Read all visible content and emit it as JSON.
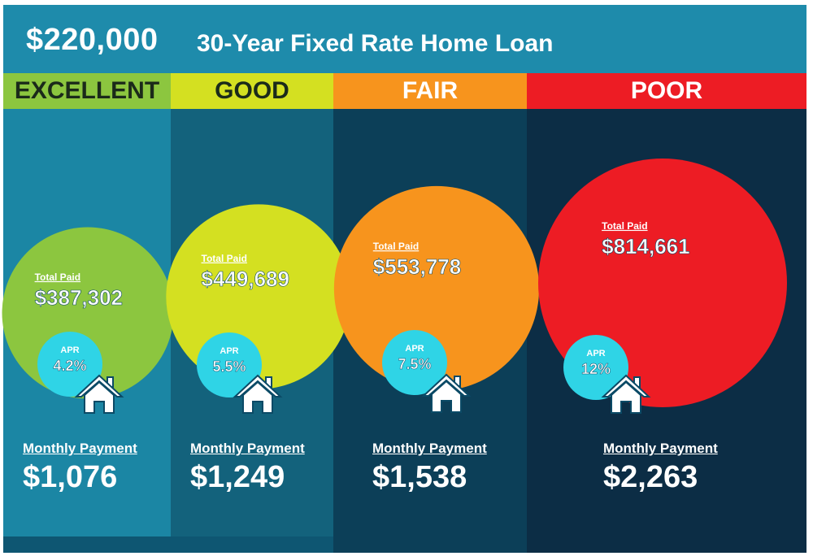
{
  "header": {
    "amount": "$220,000",
    "title": "30-Year Fixed Rate Home Loan"
  },
  "colors": {
    "title_bar": "#1e8bab",
    "excellent": "#8cc63f",
    "good": "#d4e021",
    "fair": "#f7941d",
    "poor": "#ed1c24",
    "apr_circle": "#2fd4e6",
    "col_excellent_bg": "#1b86a4",
    "col_good_bg": "#13627c",
    "col_fair_bg": "#0c3f58",
    "col_poor_bg": "#0c2d45"
  },
  "labels": {
    "total_paid": "Total Paid",
    "apr": "APR",
    "monthly_payment": "Monthly Payment"
  },
  "chart_data": {
    "type": "bubble",
    "title": "$220,000 30-Year Fixed Rate Home Loan",
    "categories": [
      "EXCELLENT",
      "GOOD",
      "FAIR",
      "POOR"
    ],
    "series": [
      {
        "name": "Total Paid",
        "values": [
          387302,
          449689,
          553778,
          814661
        ],
        "labels": [
          "$387,302",
          "$449,689",
          "$553,778",
          "$814,661"
        ]
      },
      {
        "name": "APR",
        "values": [
          4.2,
          5.5,
          7.5,
          12
        ],
        "labels": [
          "4.2%",
          "5.5%",
          "7.5%",
          "12%"
        ]
      },
      {
        "name": "Monthly Payment",
        "values": [
          1076,
          1249,
          1538,
          2263
        ],
        "labels": [
          "$1,076",
          "$1,249",
          "$1,538",
          "$2,263"
        ]
      }
    ]
  }
}
